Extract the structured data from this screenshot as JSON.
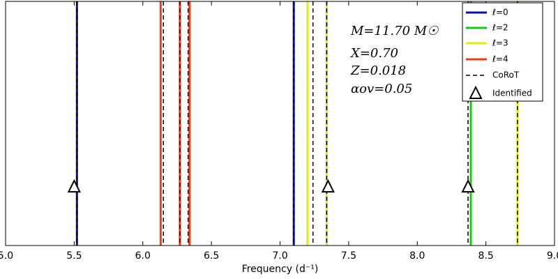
{
  "chart_data": {
    "type": "vline",
    "x_label": "Frequency (d⁻¹)",
    "xlim": [
      5.0,
      9.0
    ],
    "xticks": [
      {
        "value": 5.0,
        "label": "5.0"
      },
      {
        "value": 5.5,
        "label": "5.5"
      },
      {
        "value": 6.0,
        "label": "6.0"
      },
      {
        "value": 6.5,
        "label": "6.5"
      },
      {
        "value": 7.0,
        "label": "7.0"
      },
      {
        "value": 7.5,
        "label": "7.5"
      },
      {
        "value": 8.0,
        "label": "8.0"
      },
      {
        "value": 8.5,
        "label": "8.5"
      },
      {
        "value": 9.0,
        "label": "9.0"
      }
    ],
    "series": [
      {
        "name": "ℓ=0",
        "color": "#0a10a0",
        "values": [
          5.52,
          7.1
        ]
      },
      {
        "name": "ℓ=2",
        "color": "#14c814",
        "values": [
          8.39
        ]
      },
      {
        "name": "ℓ=3",
        "color": "#e0f000",
        "values": [
          7.2,
          7.34,
          8.73
        ]
      },
      {
        "name": "ℓ=4",
        "color": "#f03c14",
        "values": [
          6.13,
          6.27,
          6.34
        ]
      },
      {
        "name": "CoRoT",
        "color": "#000000",
        "style": "dashed",
        "values": [
          5.52,
          6.15,
          6.27,
          6.33,
          7.1,
          7.24,
          7.34,
          8.37,
          8.73
        ]
      },
      {
        "name": "Identified",
        "color": "#000000",
        "marker": "triangle",
        "values": [
          5.5,
          7.35,
          8.37
        ]
      }
    ],
    "annotations": [
      "M=11.70 M☉",
      "X=0.70",
      "Z=0.018",
      "αov=0.05"
    ],
    "legend": "upper right"
  }
}
